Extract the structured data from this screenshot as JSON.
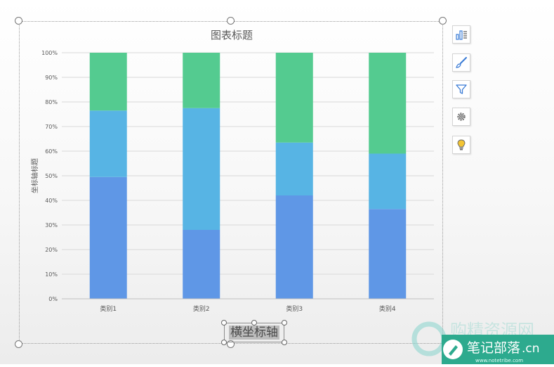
{
  "chart_data": {
    "type": "bar",
    "stacked": "percent",
    "title": "图表标题",
    "xlabel": "横坐标轴",
    "ylabel": "坐标轴标题",
    "categories": [
      "类别1",
      "类别2",
      "类别3",
      "类别4"
    ],
    "yticks": [
      "0%",
      "10%",
      "20%",
      "30%",
      "40%",
      "50%",
      "60%",
      "70%",
      "80%",
      "90%",
      "100%"
    ],
    "ylim": [
      0,
      100
    ],
    "grid": true,
    "series": [
      {
        "values": [
          49.5,
          28,
          42,
          36.5
        ],
        "color": "#5f97e6"
      },
      {
        "values": [
          27,
          49.5,
          21.5,
          22.5
        ],
        "color": "#57b4e4"
      },
      {
        "values": [
          23.5,
          22.5,
          36.5,
          41
        ],
        "color": "#54cb90"
      }
    ]
  },
  "side_buttons": [
    {
      "icon": "chart-elements-icon"
    },
    {
      "icon": "chart-style-brush-icon"
    },
    {
      "icon": "chart-filter-icon"
    },
    {
      "icon": "chart-settings-gear-icon"
    },
    {
      "icon": "lightbulb-idea-icon"
    }
  ],
  "watermark": {
    "line1": "笔记部落",
    "suffix": ".cn",
    "url": "www.notetribe.com",
    "faded": "购精资源网"
  }
}
